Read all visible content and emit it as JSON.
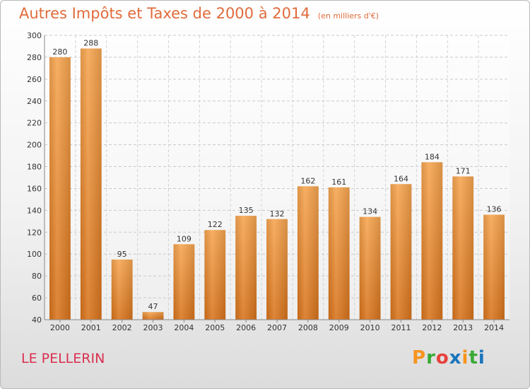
{
  "chart_data": {
    "type": "bar",
    "title": "Autres Impôts et Taxes de 2000 à 2014",
    "subtitle": "(en milliers d'€)",
    "xlabel": "",
    "ylabel": "",
    "categories": [
      "2000",
      "2001",
      "2002",
      "2003",
      "2004",
      "2005",
      "2006",
      "2007",
      "2008",
      "2009",
      "2010",
      "2011",
      "2012",
      "2013",
      "2014"
    ],
    "values": [
      280,
      288,
      95,
      47,
      109,
      122,
      135,
      132,
      162,
      161,
      134,
      164,
      184,
      171,
      136
    ],
    "ylim": [
      40,
      300
    ],
    "yticks": [
      40,
      60,
      80,
      100,
      120,
      140,
      160,
      180,
      200,
      220,
      240,
      260,
      280,
      300
    ],
    "grid": true,
    "legend": "none",
    "bar_color": "#f0913a"
  },
  "location_label": "LE PELLERIN",
  "logo": {
    "letters": [
      "P",
      "r",
      "o",
      "x",
      "i",
      "t",
      "i"
    ],
    "colors": [
      "#f7941d",
      "#39a935",
      "#e8403b",
      "#1b75bb",
      "#f7941d",
      "#39a935",
      "#1b75bb"
    ]
  }
}
